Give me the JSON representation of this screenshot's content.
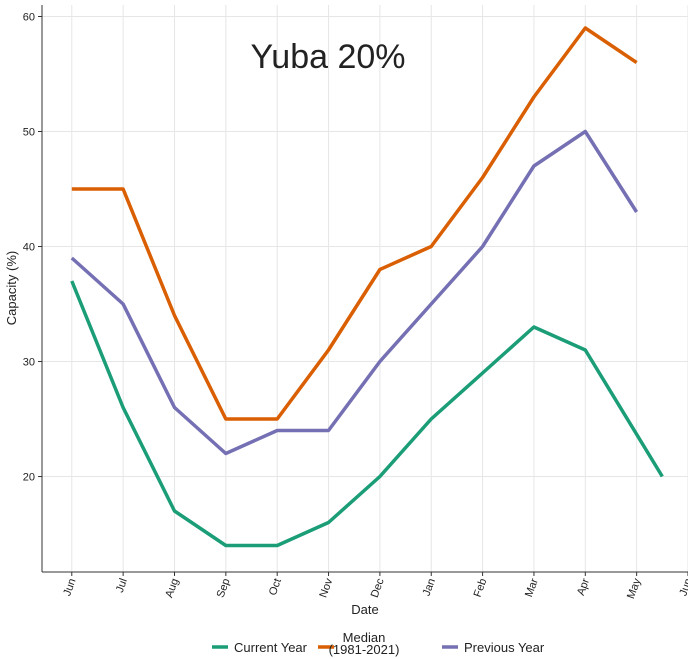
{
  "chart_data": {
    "type": "line",
    "title": "Yuba 20%",
    "xlabel": "Date",
    "ylabel": "Capacity (%)",
    "xlim": [
      -0.58,
      12.0
    ],
    "xticks": [
      {
        "value": 0,
        "label": "Jun"
      },
      {
        "value": 1,
        "label": "Jul"
      },
      {
        "value": 2,
        "label": "Aug"
      },
      {
        "value": 3,
        "label": "Sep"
      },
      {
        "value": 4,
        "label": "Oct"
      },
      {
        "value": 5,
        "label": "Nov"
      },
      {
        "value": 6,
        "label": "Dec"
      },
      {
        "value": 7,
        "label": "Jan"
      },
      {
        "value": 8,
        "label": "Feb"
      },
      {
        "value": 9,
        "label": "Mar"
      },
      {
        "value": 10,
        "label": "Apr"
      },
      {
        "value": 11,
        "label": "May"
      },
      {
        "value": 12,
        "label": "Jun"
      }
    ],
    "ylim": [
      11.7,
      61
    ],
    "yticks": [
      20,
      30,
      40,
      50,
      60
    ],
    "grid": true,
    "legend": "bottom",
    "series": [
      {
        "name": "Current Year",
        "color": "#1b9e77",
        "x": [
          0,
          1,
          2,
          3,
          4,
          5,
          6,
          7,
          8,
          9,
          10,
          11.5
        ],
        "values": [
          37,
          26,
          17,
          14,
          14,
          16,
          20,
          25,
          29,
          33,
          31,
          20
        ]
      },
      {
        "name": "Median\n(1981-2021)",
        "color": "#d95f02",
        "x": [
          0,
          1,
          2,
          3,
          4,
          5,
          6,
          7,
          8,
          9,
          10,
          11
        ],
        "values": [
          45,
          45,
          34,
          25,
          25,
          31,
          38,
          40,
          46,
          53,
          59,
          56
        ]
      },
      {
        "name": "Previous Year",
        "color": "#7570b3",
        "x": [
          0,
          1,
          2,
          3,
          4,
          5,
          6,
          7,
          8,
          9,
          10,
          11
        ],
        "values": [
          39,
          35,
          26,
          22,
          24,
          24,
          30,
          35,
          40,
          47,
          50,
          43
        ]
      }
    ]
  }
}
